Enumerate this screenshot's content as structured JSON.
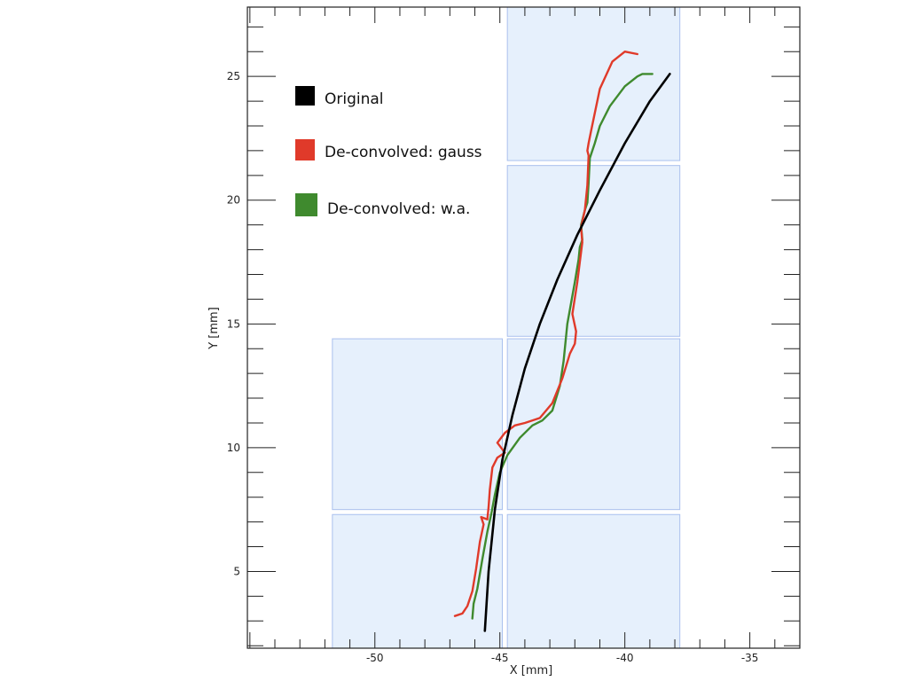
{
  "chart_data": {
    "type": "line",
    "title": "",
    "xlabel": "X [mm]",
    "ylabel": "Y [mm]",
    "xlim": [
      -55.1,
      -33.0
    ],
    "ylim": [
      1.9,
      27.8
    ],
    "x_ticks": [
      -50,
      -45,
      -40,
      -35
    ],
    "y_ticks": [
      5,
      10,
      15,
      20,
      25
    ],
    "grid": false,
    "legend_position": "top-left",
    "colors": {
      "original": "#000000",
      "gauss": "#e03a2a",
      "wa": "#3f8a2e",
      "module_fill": "#e6f0fc",
      "module_stroke": "#aac0ee"
    },
    "modules": [
      {
        "x": [
          -51.7,
          -44.9
        ],
        "y": [
          1.9,
          7.3
        ]
      },
      {
        "x": [
          -44.7,
          -37.8
        ],
        "y": [
          1.9,
          7.3
        ]
      },
      {
        "x": [
          -51.7,
          -44.9
        ],
        "y": [
          7.5,
          14.4
        ]
      },
      {
        "x": [
          -44.7,
          -37.8
        ],
        "y": [
          7.5,
          14.4
        ]
      },
      {
        "x": [
          -44.7,
          -37.8
        ],
        "y": [
          14.5,
          21.4
        ]
      },
      {
        "x": [
          -44.7,
          -37.8
        ],
        "y": [
          21.6,
          27.8
        ]
      }
    ],
    "series": [
      {
        "name": "Original",
        "color": "#000000",
        "x": [
          -45.6,
          -45.45,
          -45.2,
          -44.9,
          -44.5,
          -44.0,
          -43.4,
          -42.7,
          -41.9,
          -41.0,
          -40.0,
          -39.0,
          -38.2
        ],
        "y": [
          2.6,
          5.0,
          7.5,
          9.5,
          11.3,
          13.2,
          15.0,
          16.8,
          18.6,
          20.4,
          22.3,
          24.0,
          25.1
        ]
      },
      {
        "name": "De-convolved: gauss",
        "color": "#e03a2a",
        "x": [
          -46.8,
          -46.5,
          -46.3,
          -46.1,
          -45.95,
          -45.8,
          -45.65,
          -45.75,
          -45.5,
          -45.45,
          -45.4,
          -45.3,
          -45.1,
          -44.8,
          -45.1,
          -44.8,
          -44.4,
          -44.0,
          -43.4,
          -42.9,
          -42.5,
          -42.2,
          -42.0,
          -41.95,
          -42.1,
          -41.9,
          -41.8,
          -41.7,
          -41.75,
          -41.6,
          -41.5,
          -41.45,
          -41.5,
          -41.45,
          -41.35,
          -41.0,
          -40.5,
          -40.0,
          -39.5
        ],
        "y": [
          3.2,
          3.3,
          3.6,
          4.2,
          5.1,
          6.2,
          6.9,
          7.2,
          7.1,
          7.6,
          8.3,
          9.2,
          9.6,
          9.8,
          10.2,
          10.6,
          10.9,
          11.0,
          11.2,
          11.8,
          12.8,
          13.8,
          14.2,
          14.7,
          15.4,
          16.7,
          17.5,
          18.3,
          18.9,
          19.6,
          20.6,
          21.8,
          22.0,
          22.3,
          22.8,
          24.5,
          25.6,
          26.0,
          25.9
        ]
      },
      {
        "name": "De-convolved: w.a.",
        "color": "#3f8a2e",
        "x": [
          -46.1,
          -46.05,
          -45.9,
          -45.7,
          -45.5,
          -45.35,
          -45.2,
          -45.0,
          -44.7,
          -44.2,
          -43.7,
          -43.3,
          -42.9,
          -42.6,
          -42.45,
          -42.3,
          -42.0,
          -41.85,
          -41.8,
          -41.7,
          -41.75,
          -41.6,
          -41.5,
          -41.45,
          -41.4,
          -41.2,
          -41.0,
          -40.6,
          -40.0,
          -39.5,
          -39.3,
          -38.9
        ],
        "y": [
          3.1,
          3.7,
          4.3,
          5.5,
          6.6,
          7.3,
          8.1,
          9.0,
          9.7,
          10.4,
          10.9,
          11.1,
          11.5,
          12.5,
          13.5,
          15.0,
          16.7,
          17.6,
          18.1,
          18.4,
          19.0,
          19.6,
          19.9,
          20.7,
          21.7,
          22.3,
          23.0,
          23.8,
          24.6,
          25.0,
          25.1,
          25.1
        ]
      }
    ]
  }
}
